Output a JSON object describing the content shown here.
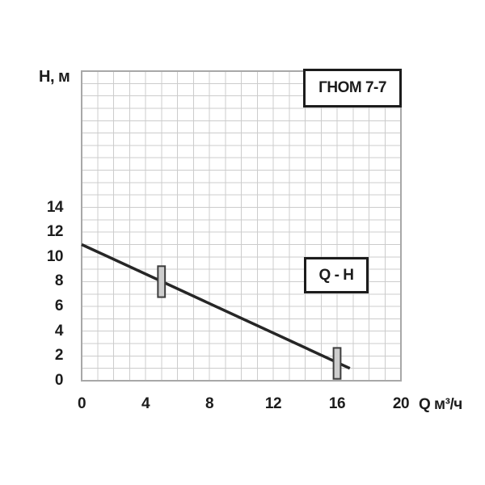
{
  "page": {
    "background": "#ffffff"
  },
  "title_box": {
    "label": "ГНОМ 7-7"
  },
  "curve_box": {
    "label": "Q - H"
  },
  "chart_data": {
    "type": "line",
    "title": "ГНОМ 7-7",
    "curve_label": "Q - H",
    "xlabel": "Q м³/ч",
    "ylabel": "Н, м",
    "xlim": [
      0,
      20
    ],
    "ylim": [
      0,
      25
    ],
    "x_ticks": [
      0,
      4,
      8,
      12,
      16,
      20
    ],
    "y_ticks": [
      0,
      2,
      4,
      6,
      8,
      10,
      12,
      14
    ],
    "grid": true,
    "grid_step_x": 1,
    "grid_step_y": 1,
    "legend_position": "none",
    "series": [
      {
        "name": "Q - H",
        "points": [
          [
            0,
            11.0
          ],
          [
            16.8,
            1.0
          ]
        ]
      }
    ],
    "operating_markers": [
      {
        "q": 5,
        "h": 8.0,
        "h_span": 2.5
      },
      {
        "q": 16,
        "h": 1.4,
        "h_span": 2.5
      }
    ],
    "colors": {
      "background": "#ffffff",
      "line": "#262626",
      "grid": "#cccccc",
      "plot_border": "#a8a8a8",
      "marker_fill": "#cdcdcd",
      "marker_border": "#3d3d3d",
      "text": "#1c1c1c",
      "box_border": "#1c1c1c",
      "box_fill": "#ffffff"
    }
  }
}
